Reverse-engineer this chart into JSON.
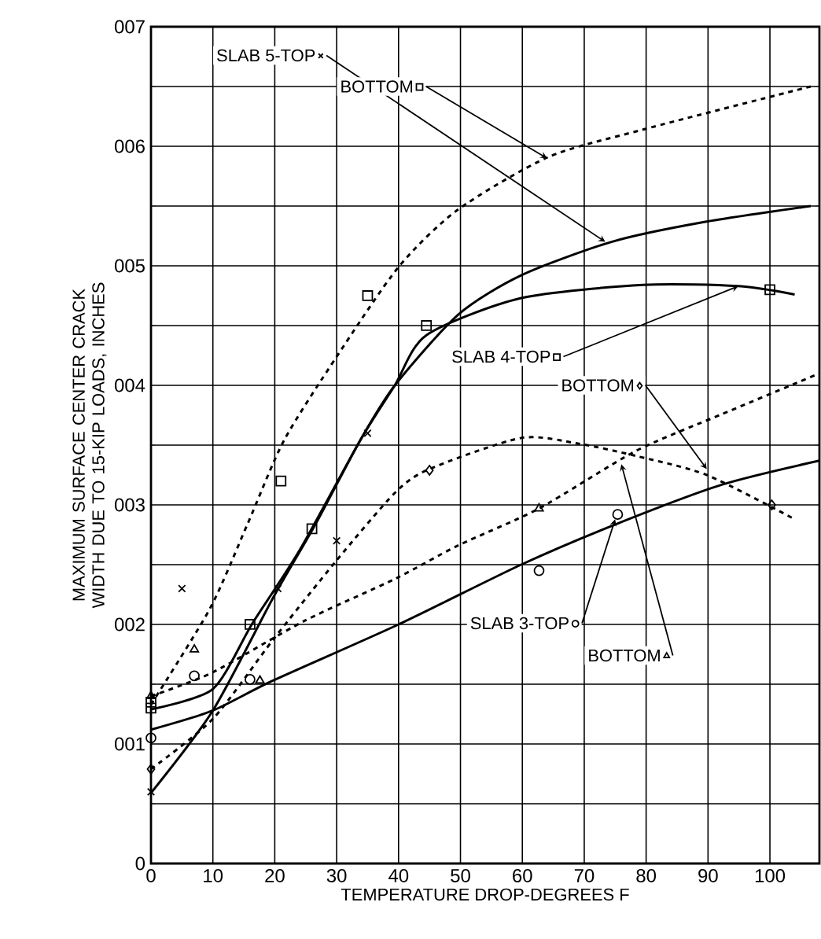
{
  "chart_data": {
    "type": "line",
    "xlabel": "TEMPERATURE DROP-DEGREES F",
    "ylabel": "MAXIMUM SURFACE CENTER CRACK WIDTH DUE TO 15-KIP LOADS, INCHES",
    "xlim": [
      0,
      108
    ],
    "ylim": [
      0,
      7
    ],
    "xticks": [
      0,
      10,
      20,
      30,
      40,
      50,
      60,
      70,
      80,
      90,
      100
    ],
    "yticks": [
      0,
      {
        "value": 1,
        "label": "001"
      },
      {
        "value": 2,
        "label": "002"
      },
      {
        "value": 3,
        "label": "003"
      },
      {
        "value": 4,
        "label": "004"
      },
      {
        "value": 5,
        "label": "005"
      },
      {
        "value": 6,
        "label": "006"
      },
      {
        "value": 7,
        "label": "007"
      }
    ],
    "grid": true,
    "legend": "top",
    "series": [
      {
        "color": "#000000",
        "line_style": "solid",
        "marker": "none",
        "x": [
          0,
          10,
          19.7,
          26.6,
          33.8,
          39.4,
          49.6,
          59.8,
          74.4,
          88.7,
          106.6
        ],
        "values": [
          0.59,
          1.28,
          2.22,
          2.84,
          3.54,
          4.0,
          4.59,
          4.92,
          5.2,
          5.36,
          5.5
        ]
      },
      {
        "type": "scatter",
        "name": "SLAB 5-TOP",
        "color": "#000000",
        "marker": "cross",
        "x": [
          0,
          5,
          20.5,
          30,
          35
        ],
        "values": [
          0.6,
          2.3,
          2.3,
          2.7,
          3.6
        ]
      },
      {
        "color": "#000000",
        "line_style": "dashed",
        "marker": "none",
        "x": [
          0,
          9.5,
          15.6,
          21.5,
          30,
          40,
          49.6,
          64.2,
          79.5,
          106.6
        ],
        "values": [
          1.33,
          2.13,
          2.84,
          3.54,
          4.24,
          4.99,
          5.47,
          5.91,
          6.14,
          6.5
        ]
      },
      {
        "type": "scatter",
        "name": "BOTTOM",
        "color": "#000000",
        "marker": "square",
        "x": [
          0,
          21,
          35
        ],
        "values": [
          1.35,
          3.2,
          4.75
        ]
      },
      {
        "color": "#000000",
        "line_style": "solid",
        "marker": "none",
        "x": [
          0,
          10,
          16.4,
          24,
          33.8,
          39.4,
          44.5,
          59.8,
          79.5,
          94.9,
          104
        ],
        "values": [
          1.29,
          1.46,
          2.01,
          2.62,
          3.54,
          4.0,
          4.42,
          4.73,
          4.84,
          4.83,
          4.76
        ]
      },
      {
        "type": "scatter",
        "name": "SLAB 4-TOP",
        "color": "#000000",
        "marker": "square",
        "x": [
          0,
          16,
          26,
          44.5,
          100
        ],
        "values": [
          1.3,
          2.0,
          2.8,
          4.5,
          4.8
        ]
      },
      {
        "color": "#000000",
        "line_style": "dashed",
        "marker": "none",
        "x": [
          0,
          10,
          19.7,
          29.9,
          39.4,
          45,
          59.8,
          69.3,
          78.3,
          89.8,
          104
        ],
        "values": [
          0.79,
          1.21,
          1.87,
          2.53,
          3.1,
          3.3,
          3.56,
          3.51,
          3.41,
          3.25,
          2.88
        ]
      },
      {
        "type": "scatter",
        "name": "BOTTOM",
        "color": "#000000",
        "marker": "diamond",
        "x": [
          0,
          45,
          100.3
        ],
        "values": [
          0.79,
          3.29,
          3.0
        ]
      },
      {
        "color": "#000000",
        "line_style": "solid",
        "marker": "none",
        "x": [
          0,
          10,
          19.7,
          40,
          59.8,
          75.2,
          92.3,
          108
        ],
        "values": [
          1.12,
          1.28,
          1.53,
          2.0,
          2.5,
          2.84,
          3.17,
          3.37
        ]
      },
      {
        "type": "scatter",
        "name": "SLAB 3-TOP",
        "color": "#000000",
        "marker": "circle",
        "x": [
          0,
          7,
          16,
          62.7,
          75.4
        ],
        "values": [
          1.05,
          1.57,
          1.54,
          2.45,
          2.92
        ]
      },
      {
        "color": "#000000",
        "line_style": "dashed",
        "marker": "none",
        "x": [
          0,
          10,
          24.8,
          39.4,
          49.6,
          62.7,
          78.3,
          92.3,
          108
        ],
        "values": [
          1.4,
          1.6,
          2.03,
          2.38,
          2.66,
          2.97,
          3.45,
          3.76,
          4.1
        ]
      },
      {
        "type": "scatter",
        "name": "BOTTOM",
        "color": "#000000",
        "marker": "triangle",
        "x": [
          0,
          7,
          17.6,
          62.7
        ],
        "values": [
          1.4,
          1.79,
          1.53,
          2.97
        ]
      }
    ]
  }
}
